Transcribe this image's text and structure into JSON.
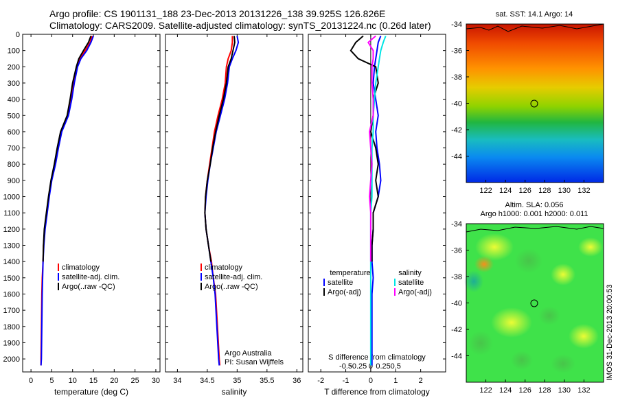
{
  "header": {
    "title_line1": "Argo profile: CS 1901131_188 23-Dec-2013 20131226_138 39.925S 126.826E",
    "title_line2": "Climatology: CARS2009. Satellite-adjusted climatology: synTS_20131224.nc (0.26d later)"
  },
  "credit": {
    "line1": "Argo Australia",
    "line2": "PI: Susan Wijffels"
  },
  "side_label": "IMOS 31-Dec-2013 20:00:53",
  "colors": {
    "climatology": "#ff0000",
    "satellite": "#0000ff",
    "argo": "#000000",
    "sal_satellite": "#00e5e5",
    "sal_argo": "#ff00ff"
  },
  "chart_data": [
    {
      "type": "line",
      "name": "temperature-profile",
      "xlabel": "temperature (deg C)",
      "ylabel": "",
      "xlim": [
        -2,
        31
      ],
      "ylim": [
        2080,
        0
      ],
      "xticks": [
        0,
        5,
        10,
        15,
        20,
        25,
        30
      ],
      "yticks": [
        0,
        100,
        200,
        300,
        400,
        500,
        600,
        700,
        800,
        900,
        1000,
        1100,
        1200,
        1300,
        1400,
        1500,
        1600,
        1700,
        1800,
        1900,
        2000
      ],
      "legend": [
        "climatology",
        "satellite-adj. clim.",
        "Argo(..raw -QC)"
      ],
      "series": [
        {
          "name": "climatology",
          "color": "#ff0000",
          "x": [
            14.7,
            14.2,
            13.0,
            11.8,
            11.0,
            10.3,
            9.6,
            8.8,
            7.2,
            6.4,
            5.7,
            4.9,
            4.3,
            3.8,
            3.3,
            3.0,
            2.9,
            2.7,
            2.6,
            2.5,
            2.4,
            2.4
          ],
          "y": [
            10,
            50,
            100,
            150,
            200,
            300,
            400,
            500,
            600,
            700,
            800,
            900,
            1000,
            1100,
            1200,
            1300,
            1400,
            1500,
            1600,
            1800,
            2000,
            2040
          ]
        },
        {
          "name": "satellite-adj. clim.",
          "color": "#0000ff",
          "x": [
            15.0,
            14.4,
            13.4,
            12.0,
            11.2,
            10.4,
            9.8,
            9.0,
            7.4,
            6.6,
            5.9,
            5.0,
            4.4,
            3.9,
            3.4,
            3.1,
            2.9,
            2.8,
            2.7,
            2.6,
            2.5,
            2.4
          ],
          "y": [
            10,
            50,
            100,
            150,
            200,
            300,
            400,
            500,
            600,
            700,
            800,
            900,
            1000,
            1100,
            1200,
            1300,
            1400,
            1500,
            1600,
            1800,
            2000,
            2040
          ]
        },
        {
          "name": "Argo(..raw -QC)",
          "color": "#000000",
          "x": [
            14.4,
            13.8,
            12.6,
            11.5,
            10.9,
            10.0,
            9.4,
            8.7,
            7.1,
            6.3,
            5.6,
            4.8,
            4.2,
            3.7,
            3.2,
            3.0,
            2.9
          ],
          "y": [
            10,
            50,
            100,
            150,
            200,
            300,
            400,
            500,
            600,
            700,
            800,
            900,
            1000,
            1100,
            1200,
            1300,
            1400
          ]
        }
      ]
    },
    {
      "type": "line",
      "name": "salinity-profile",
      "xlabel": "salinity",
      "xlim": [
        33.8,
        36.1
      ],
      "ylim": [
        2080,
        0
      ],
      "xticks": [
        34,
        34.5,
        35,
        35.5,
        36
      ],
      "legend": [
        "climatology",
        "satellite-adj. clim.",
        "Argo(..raw -QC)"
      ],
      "series": [
        {
          "name": "climatology",
          "color": "#ff0000",
          "x": [
            34.92,
            34.92,
            34.9,
            34.85,
            34.82,
            34.8,
            34.75,
            34.68,
            34.62,
            34.58,
            34.54,
            34.5,
            34.47,
            34.46,
            34.48,
            34.52,
            34.57,
            34.6,
            34.64,
            34.67,
            34.7,
            34.71
          ],
          "y": [
            10,
            50,
            100,
            150,
            200,
            300,
            400,
            500,
            600,
            700,
            800,
            900,
            1000,
            1100,
            1200,
            1300,
            1400,
            1500,
            1600,
            1800,
            2000,
            2040
          ]
        },
        {
          "name": "satellite-adj. clim.",
          "color": "#0000ff",
          "x": [
            35.0,
            35.02,
            34.98,
            34.92,
            34.87,
            34.84,
            34.79,
            34.72,
            34.65,
            34.6,
            34.55,
            34.51,
            34.48,
            34.46,
            34.48,
            34.52,
            34.56,
            34.6,
            34.63,
            34.66,
            34.69,
            34.7
          ],
          "y": [
            10,
            50,
            100,
            150,
            200,
            300,
            400,
            500,
            600,
            700,
            800,
            900,
            1000,
            1100,
            1200,
            1300,
            1400,
            1500,
            1600,
            1800,
            2000,
            2040
          ]
        },
        {
          "name": "Argo(..raw -QC)",
          "color": "#000000",
          "x": [
            34.95,
            34.96,
            34.93,
            34.9,
            34.85,
            34.82,
            34.77,
            34.7,
            34.64,
            34.59,
            34.55,
            34.5,
            34.47,
            34.46,
            34.48,
            34.52,
            34.56
          ],
          "y": [
            10,
            50,
            100,
            150,
            200,
            300,
            400,
            500,
            600,
            700,
            800,
            900,
            1000,
            1100,
            1200,
            1300,
            1400
          ]
        }
      ]
    },
    {
      "type": "line",
      "name": "difference-profile",
      "xlabel": "T difference from climatology",
      "xlabel_top": "S difference from climatology",
      "xlim": [
        -2.5,
        3.0
      ],
      "ylim": [
        2080,
        0
      ],
      "xticks": [
        -2,
        -1,
        0,
        1,
        2
      ],
      "s_ticks": [
        "-0.5",
        "-0.25",
        "0",
        "0.25",
        "0.5"
      ],
      "legend_temperature": {
        "title": "temperature",
        "items": [
          "satellite",
          "Argo(-adj)"
        ]
      },
      "legend_salinity": {
        "title": "salinity",
        "items": [
          "satellite",
          "Argo(-adj)"
        ]
      },
      "series": [
        {
          "name": "satellite",
          "group": "temperature",
          "color": "#0000ff",
          "x": [
            0.4,
            0.3,
            0.25,
            0.2,
            0.15,
            0.1,
            0.2,
            0.3,
            0.2,
            0.25,
            0.35,
            0.4,
            0.3,
            0.1,
            0.1,
            0.05,
            0.05,
            0.1,
            0.05,
            0.05,
            0.05,
            0.05
          ],
          "y": [
            10,
            50,
            100,
            150,
            200,
            300,
            400,
            500,
            600,
            700,
            800,
            900,
            1000,
            1100,
            1200,
            1300,
            1400,
            1500,
            1600,
            1800,
            2000,
            2040
          ]
        },
        {
          "name": "Argo(-adj)",
          "group": "temperature",
          "color": "#000000",
          "x": [
            -0.3,
            -0.6,
            -0.8,
            -0.5,
            0.2,
            0.3,
            0.1,
            0.1,
            0.0,
            0.2,
            0.3,
            0.2,
            0.3,
            0.1,
            0.1,
            0.05,
            0.05
          ],
          "y": [
            10,
            50,
            100,
            150,
            200,
            300,
            400,
            500,
            600,
            700,
            800,
            900,
            1000,
            1100,
            1200,
            1300,
            1400
          ]
        },
        {
          "name": "satellite",
          "group": "salinity",
          "color": "#00e5e5",
          "x": [
            0.6,
            0.5,
            0.4,
            0.35,
            0.3,
            0.2,
            0.15,
            0.1,
            0.1,
            0.05,
            0.05,
            0.05,
            0.05,
            0.0,
            0.0,
            0.0,
            0.0,
            0.0,
            0.0,
            0.0,
            0.0,
            0.0
          ],
          "y": [
            10,
            50,
            100,
            150,
            200,
            300,
            400,
            500,
            600,
            700,
            800,
            900,
            1000,
            1100,
            1200,
            1300,
            1400,
            1500,
            1600,
            1800,
            2000,
            2040
          ]
        },
        {
          "name": "Argo(-adj)",
          "group": "salinity",
          "color": "#ff00ff",
          "x": [
            0.2,
            -0.1,
            0.1,
            0.1,
            0.05,
            0.05,
            0.1,
            0.1,
            -0.05,
            0.0,
            0.05,
            0.0,
            -0.05,
            0.0,
            0.0,
            0.0,
            0.0
          ],
          "y": [
            10,
            50,
            100,
            150,
            200,
            300,
            400,
            500,
            600,
            700,
            800,
            900,
            1000,
            1100,
            1200,
            1300,
            1400
          ]
        }
      ]
    },
    {
      "type": "heatmap",
      "name": "sst-map",
      "title": "sat. SST: 14.1 Argo: 14",
      "xlim": [
        120,
        134
      ],
      "ylim": [
        -46,
        -34
      ],
      "xticks": [
        122,
        124,
        126,
        128,
        130,
        132
      ],
      "yticks": [
        -34,
        -36,
        -38,
        -40,
        -42,
        -44
      ],
      "argo_position": {
        "lon": 126.826,
        "lat": -39.925
      }
    },
    {
      "type": "heatmap",
      "name": "sla-map",
      "title_line1": "Altim. SLA: 0.056",
      "title_line2": "Argo h1000: 0.001 h2000: 0.011",
      "xlim": [
        120,
        134
      ],
      "ylim": [
        -46,
        -34
      ],
      "xticks": [
        122,
        124,
        126,
        128,
        130,
        132
      ],
      "yticks": [
        -34,
        -36,
        -38,
        -40,
        -42,
        -44
      ],
      "argo_position": {
        "lon": 126.826,
        "lat": -39.925
      }
    }
  ]
}
